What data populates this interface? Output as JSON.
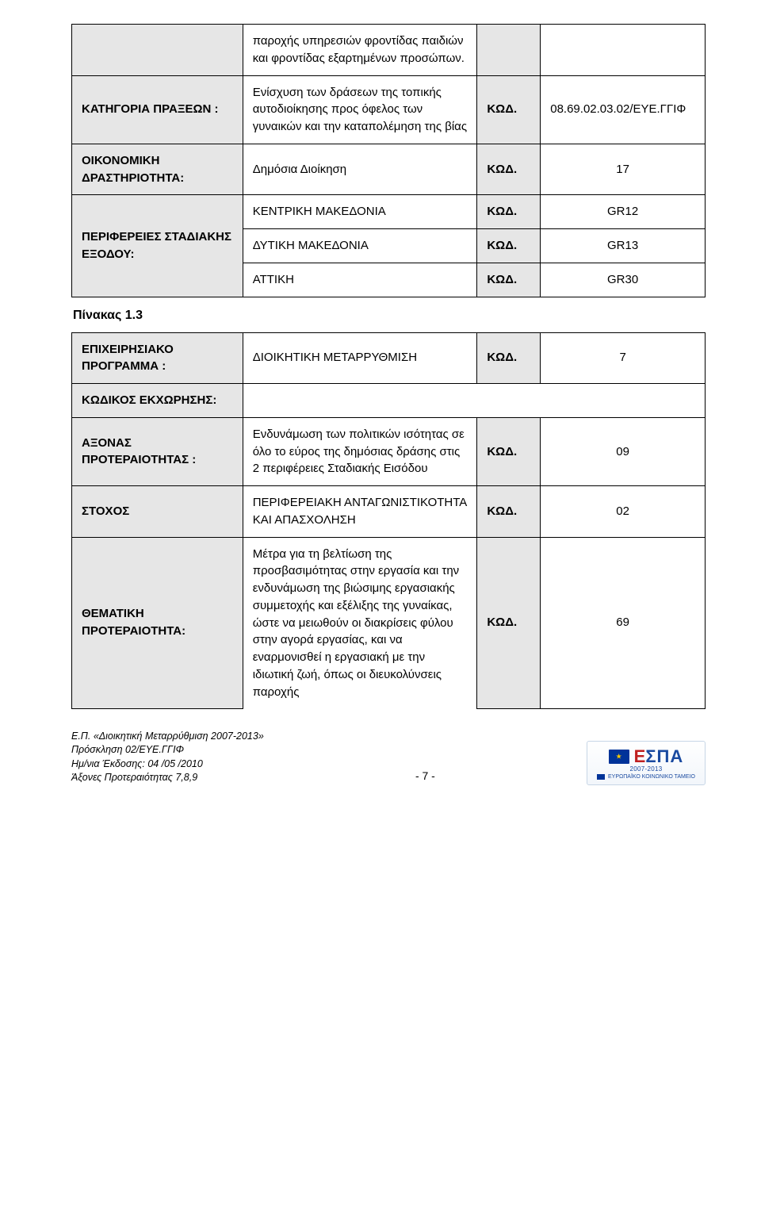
{
  "top": {
    "cell_intro": "παροχής υπηρεσιών φροντίδας παιδιών και φροντίδας εξαρτημένων προσώπων."
  },
  "r1": {
    "label": "ΚΑΤΗΓΟΡΙΑ ΠΡΑΞΕΩΝ :",
    "desc": "Ενίσχυση των δράσεων της τοπικής αυτοδιοίκησης προς όφελος των γυναικών και την καταπολέμηση της βίας",
    "kod": "ΚΩΔ.",
    "code": "08.69.02.03.02/ΕΥΕ.ΓΓΙΦ"
  },
  "r2": {
    "label": "ΟΙΚΟΝΟΜΙΚΗ ΔΡΑΣΤΗΡΙΟΤΗΤΑ:",
    "desc": "Δημόσια Διοίκηση",
    "kod": "ΚΩΔ.",
    "code": "17"
  },
  "r3": {
    "label": "ΠΕΡΙΦΕΡΕΙΕΣ ΣΤΑΔΙΑΚΗΣ ΕΞΟΔΟΥ:",
    "rows": [
      {
        "name": "ΚΕΝΤΡΙΚΗ ΜΑΚΕΔΟΝΙΑ",
        "kod": "ΚΩΔ.",
        "code": "GR12"
      },
      {
        "name": "ΔΥΤΙΚΗ ΜΑΚΕΔΟΝΙΑ",
        "kod": "ΚΩΔ.",
        "code": "GR13"
      },
      {
        "name": "ΑΤΤΙΚΗ",
        "kod": "ΚΩΔ.",
        "code": "GR30"
      }
    ]
  },
  "pinakas": "Πίνακας 1.3",
  "b1": {
    "label": "ΕΠΙΧΕΙΡΗΣΙΑΚΟ ΠΡΟΓΡΑΜΜΑ :",
    "desc": "ΔΙΟΙΚΗΤΙΚΗ ΜΕΤΑΡΡΥΘΜΙΣΗ",
    "kod": "ΚΩΔ.",
    "code": "7"
  },
  "b2": {
    "label": "ΚΩΔΙΚΟΣ ΕΚΧΩΡΗΣΗΣ:"
  },
  "b3": {
    "label": "ΑΞΟΝΑΣ ΠΡΟΤΕΡΑΙΟΤΗΤΑΣ :",
    "desc": "Ενδυνάμωση των πολιτικών ισότητας σε όλο το εύρος της δημόσιας δράσης στις 2 περιφέρειες Σταδιακής Εισόδου",
    "kod": "ΚΩΔ.",
    "code": "09"
  },
  "b4": {
    "label": "ΣΤΟΧΟΣ",
    "desc": "ΠΕΡΙΦΕΡΕΙΑΚΗ ΑΝΤΑΓΩΝΙΣΤΙΚΟΤΗΤΑ ΚΑΙ ΑΠΑΣΧΟΛΗΣΗ",
    "kod": "ΚΩΔ.",
    "code": "02"
  },
  "b5": {
    "label": "ΘΕΜΑΤΙΚΗ ΠΡΟΤΕΡΑΙΟΤΗΤΑ:",
    "desc": "Μέτρα για τη βελτίωση της προσβασιμότητας στην εργασία και την ενδυνάμωση της βιώσιμης εργασιακής συμμετοχής και εξέλιξης της γυναίκας, ώστε να μειωθούν οι διακρίσεις φύλου στην αγορά εργασίας, και να εναρμονισθεί η εργασιακή με την ιδιωτική ζωή, όπως οι διευκολύνσεις παροχής",
    "kod": "ΚΩΔ.",
    "code": "69"
  },
  "footer": {
    "l1": "Ε.Π. «Διοικητική Μεταρρύθμιση 2007-2013»",
    "l2": "Πρόσκληση 02/ΕΥΕ.ΓΓΙΦ",
    "l3": "Ημ/νια Έκδοσης: 04 /05 /2010",
    "l4": "Άξονες Προτεραιότητας 7,8,9",
    "page": "- 7 -"
  },
  "colors": {
    "header_bg": "#e6e6e6",
    "border": "#000000",
    "page_bg": "#ffffff"
  }
}
